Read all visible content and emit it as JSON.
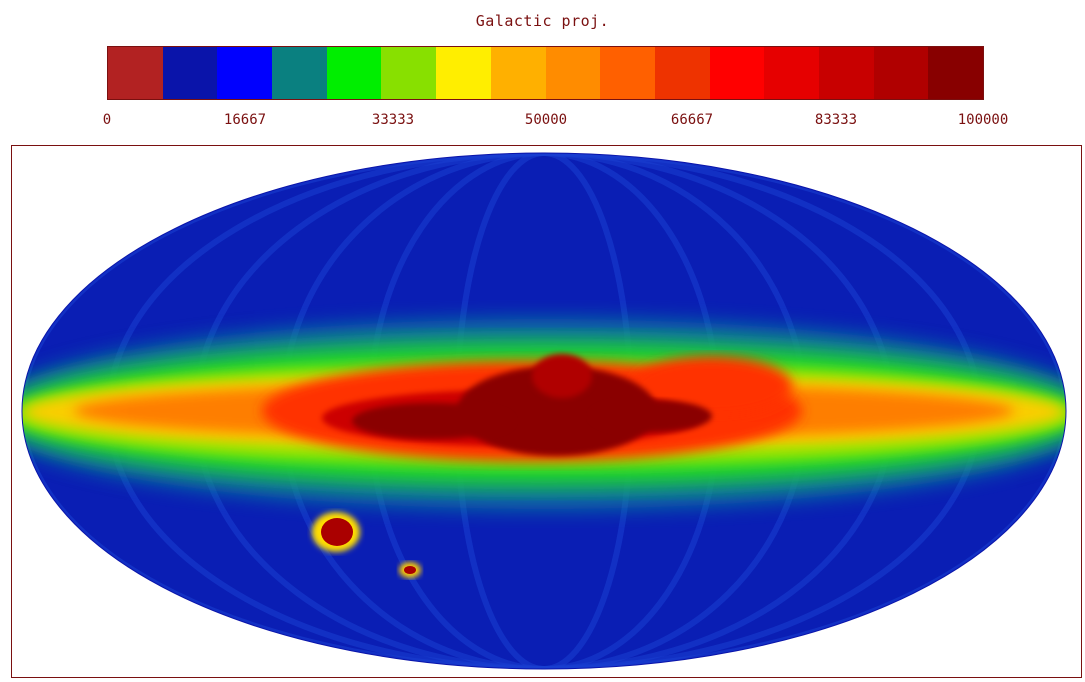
{
  "chart_data": {
    "type": "heatmap",
    "title": "Galactic proj.",
    "projection": "Mollweide",
    "colorbar": {
      "range": [
        0,
        100000
      ],
      "tick_labels": [
        "0",
        "16667",
        "33333",
        "50000",
        "66667",
        "83333",
        "100000"
      ],
      "tick_values": [
        0,
        16667,
        33333,
        50000,
        66667,
        83333,
        100000
      ],
      "colors": [
        "#b22222",
        "#0a14aa",
        "#0000ff",
        "#0a8080",
        "#00ee00",
        "#88e000",
        "#ffee00",
        "#ffb000",
        "#ff8c00",
        "#ff6000",
        "#ee3300",
        "#ff0000",
        "#e60000",
        "#c80000",
        "#b00000",
        "#880000"
      ]
    },
    "features": {
      "galactic_plane": "band of high values along the equator, peak (>=100000) toward the galactic center",
      "magellanic_clouds": "two compact high-value blobs below the plane on the left"
    }
  }
}
